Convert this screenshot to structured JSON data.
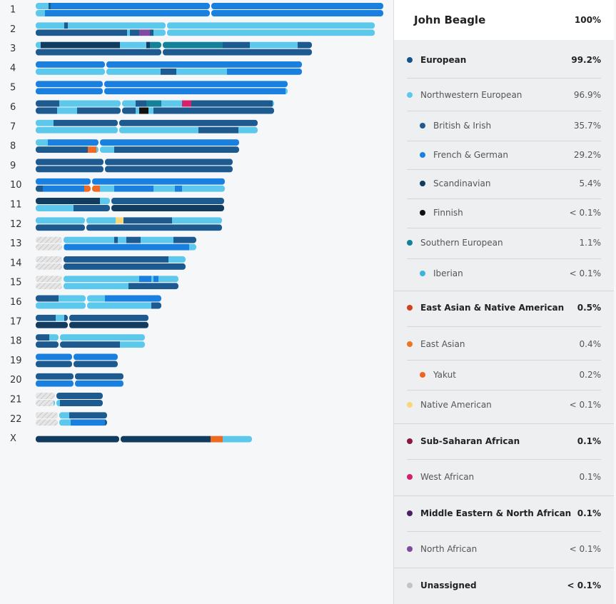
{
  "chromosomes": [
    "1",
    "2",
    "3",
    "4",
    "5",
    "6",
    "7",
    "8",
    "9",
    "10",
    "11",
    "12",
    "13",
    "14",
    "15",
    "16",
    "17",
    "18",
    "19",
    "20",
    "21",
    "22",
    "X"
  ],
  "header": {
    "name": "John Beagle",
    "value": "100%"
  },
  "rows": [
    {
      "label": "European",
      "value": "99.2%",
      "color": "#15548a",
      "level": 0,
      "bold": true
    },
    {
      "label": "Northwestern European",
      "value": "96.9%",
      "color": "#5bc8ec",
      "level": 0,
      "bold": false
    },
    {
      "label": "British & Irish",
      "value": "35.7%",
      "color": "#1d5a8f",
      "level": 1,
      "bold": false
    },
    {
      "label": "French & German",
      "value": "29.2%",
      "color": "#1a80e0",
      "level": 1,
      "bold": false
    },
    {
      "label": "Scandinavian",
      "value": "5.4%",
      "color": "#123c5f",
      "level": 1,
      "bold": false
    },
    {
      "label": "Finnish",
      "value": "< 0.1%",
      "color": "#111111",
      "level": 1,
      "bold": false
    },
    {
      "label": "Southern European",
      "value": "1.1%",
      "color": "#12829b",
      "level": 0,
      "bold": false
    },
    {
      "label": "Iberian",
      "value": "< 0.1%",
      "color": "#3ab5df",
      "level": 1,
      "bold": false
    },
    {
      "label": "East Asian & Native American",
      "value": "0.5%",
      "color": "#d2401e",
      "level": 0,
      "bold": true
    },
    {
      "label": "East Asian",
      "value": "0.4%",
      "color": "#ef7522",
      "level": 0,
      "bold": false
    },
    {
      "label": "Yakut",
      "value": "0.2%",
      "color": "#ee6422",
      "level": 1,
      "bold": false
    },
    {
      "label": "Native American",
      "value": "< 0.1%",
      "color": "#f8d77a",
      "level": 0,
      "bold": false
    },
    {
      "label": "Sub-Saharan African",
      "value": "0.1%",
      "color": "#8c1543",
      "level": 0,
      "bold": true
    },
    {
      "label": "West African",
      "value": "0.1%",
      "color": "#d5206a",
      "level": 0,
      "bold": false
    },
    {
      "label": "Middle Eastern & North African",
      "value": "0.1%",
      "color": "#4a1f66",
      "level": 0,
      "bold": true
    },
    {
      "label": "North African",
      "value": "< 0.1%",
      "color": "#7f4aa0",
      "level": 0,
      "bold": false
    },
    {
      "label": "Unassigned",
      "value": "< 0.1%",
      "color": "#c4c4c4",
      "level": 0,
      "bold": true
    }
  ]
}
